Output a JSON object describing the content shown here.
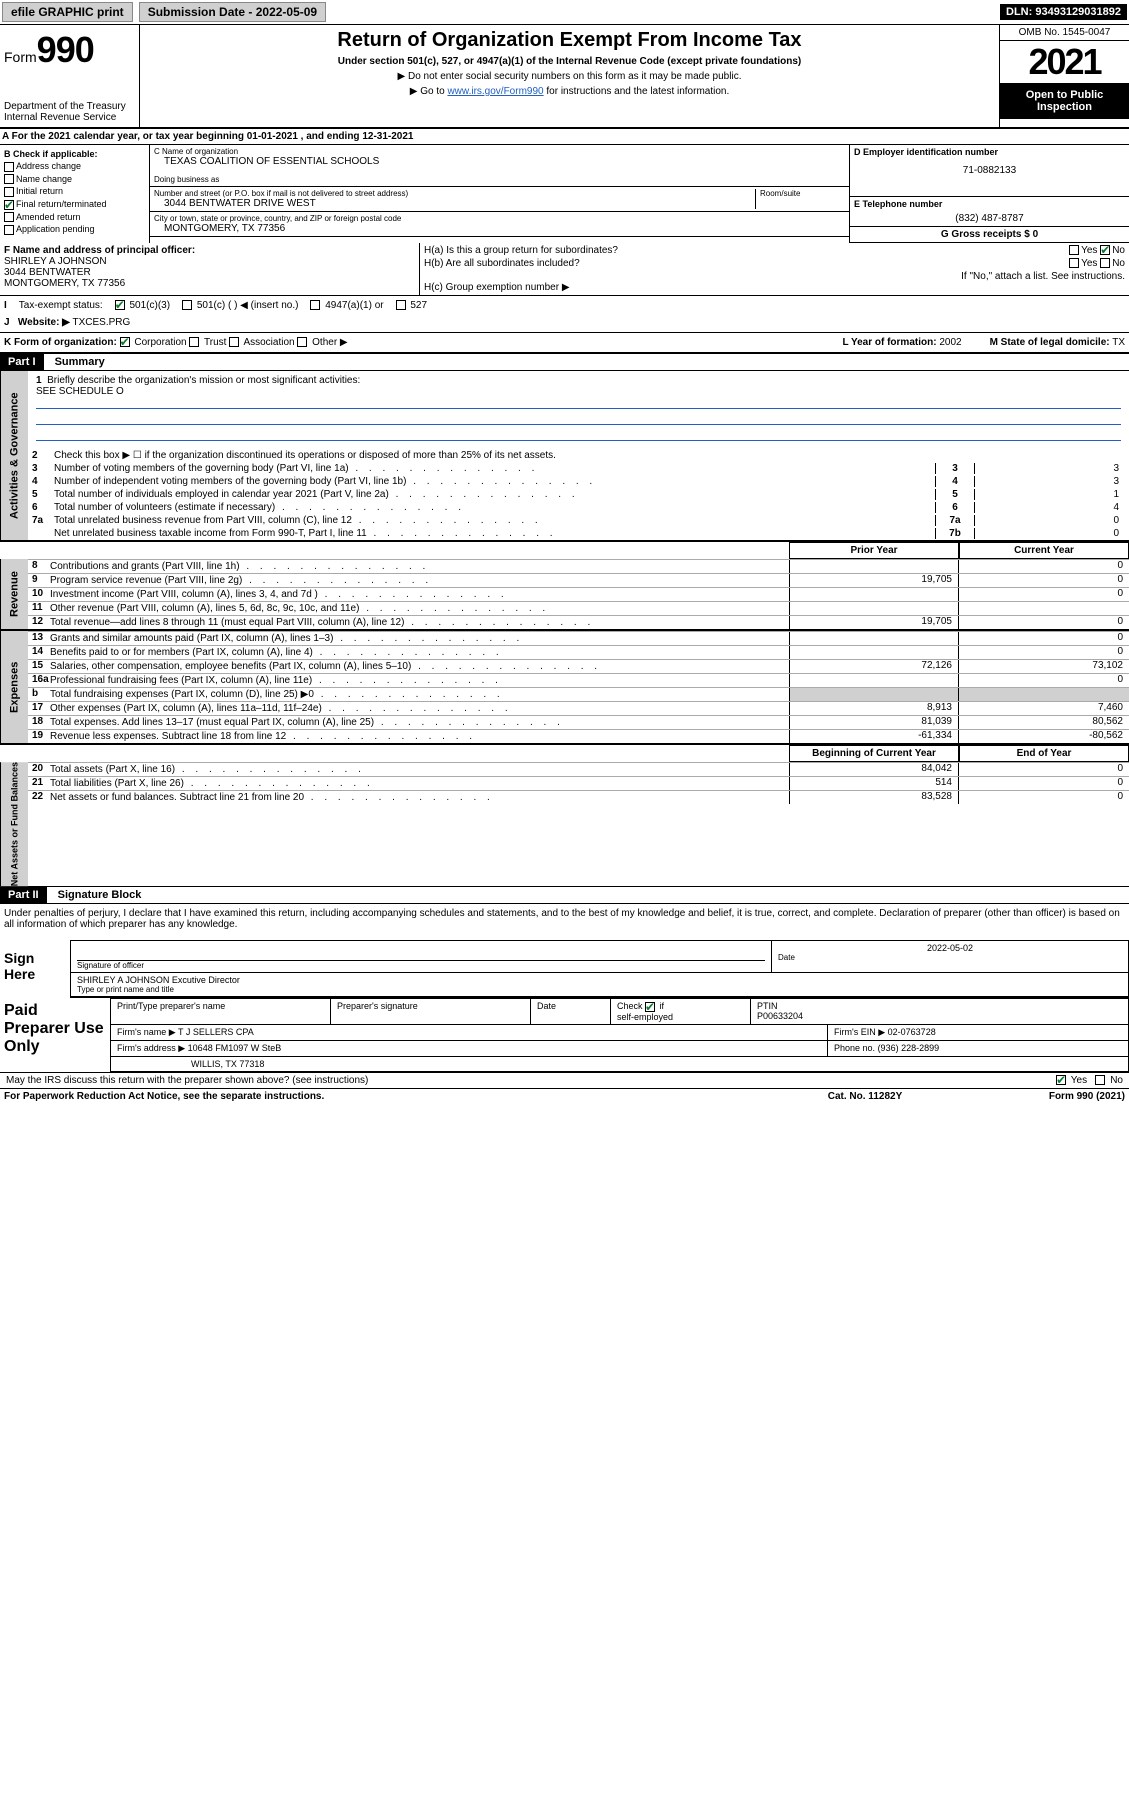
{
  "topbar": {
    "efile": "efile GRAPHIC print",
    "sub_date_label": "Submission Date - ",
    "sub_date": "2022-05-09",
    "dln_label": "DLN: ",
    "dln": "93493129031892"
  },
  "header": {
    "form_label": "Form",
    "form_number": "990",
    "dept": "Department of the Treasury",
    "irs": "Internal Revenue Service",
    "title": "Return of Organization Exempt From Income Tax",
    "sub1": "Under section 501(c), 527, or 4947(a)(1) of the Internal Revenue Code (except private foundations)",
    "sub2": "▶ Do not enter social security numbers on this form as it may be made public.",
    "sub3_pre": "▶ Go to ",
    "sub3_link": "www.irs.gov/Form990",
    "sub3_post": " for instructions and the latest information.",
    "omb": "OMB No. 1545-0047",
    "year": "2021",
    "open1": "Open to Public",
    "open2": "Inspection"
  },
  "rowA": {
    "text": "A For the 2021 calendar year, or tax year beginning 01-01-2021  , and ending 12-31-2021"
  },
  "secB": {
    "label": "B Check if applicable:",
    "items": [
      "Address change",
      "Name change",
      "Initial return",
      "Final return/terminated",
      "Amended return",
      "Application pending"
    ],
    "checked_final": true
  },
  "secC": {
    "name_lbl": "C Name of organization",
    "name": "TEXAS COALITION OF ESSENTIAL SCHOOLS",
    "dba_lbl": "Doing business as",
    "dba": "",
    "addr_lbl": "Number and street (or P.O. box if mail is not delivered to street address)",
    "room_lbl": "Room/suite",
    "addr": "3044 BENTWATER DRIVE WEST",
    "city_lbl": "City or town, state or province, country, and ZIP or foreign postal code",
    "city": "MONTGOMERY, TX  77356"
  },
  "secD": {
    "ein_lbl": "D Employer identification number",
    "ein": "71-0882133",
    "tel_lbl": "E Telephone number",
    "tel": "(832) 487-8787",
    "gross_lbl": "G Gross receipts $",
    "gross": "0"
  },
  "secF": {
    "lbl": "F Name and address of principal officer:",
    "name": "SHIRLEY A JOHNSON",
    "addr1": "3044 BENTWATER",
    "addr2": "MONTGOMERY, TX  77356"
  },
  "secH": {
    "ha": "H(a)  Is this a group return for subordinates?",
    "ha_no": true,
    "hb": "H(b)  Are all subordinates included?",
    "hb_note": "If \"No,\" attach a list. See instructions.",
    "hc": "H(c)  Group exemption number ▶"
  },
  "secI": {
    "lbl": "Tax-exempt status:",
    "c3": "501(c)(3)",
    "c_other": "501(c) (  ) ◀ (insert no.)",
    "a4947": "4947(a)(1) or",
    "s527": "527"
  },
  "secJ": {
    "lbl": "Website: ▶",
    "val": "TXCES.PRG"
  },
  "secK": {
    "lbl": "K Form of organization:",
    "corp": "Corporation",
    "trust": "Trust",
    "assoc": "Association",
    "other": "Other ▶",
    "l_lbl": "L Year of formation:",
    "l_val": "2002",
    "m_lbl": "M State of legal domicile:",
    "m_val": "TX"
  },
  "part1": {
    "hdr": "Part I",
    "title": "Summary"
  },
  "summary_top": {
    "line1_num": "1",
    "line1_txt": "Briefly describe the organization's mission or most significant activities:",
    "line1_val": "SEE SCHEDULE O",
    "line2_num": "2",
    "line2_txt": "Check this box ▶ ☐ if the organization discontinued its operations or disposed of more than 25% of its net assets.",
    "lines": [
      {
        "n": "3",
        "t": "Number of voting members of the governing body (Part VI, line 1a)",
        "box": "3",
        "v": "3"
      },
      {
        "n": "4",
        "t": "Number of independent voting members of the governing body (Part VI, line 1b)",
        "box": "4",
        "v": "3"
      },
      {
        "n": "5",
        "t": "Total number of individuals employed in calendar year 2021 (Part V, line 2a)",
        "box": "5",
        "v": "1"
      },
      {
        "n": "6",
        "t": "Total number of volunteers (estimate if necessary)",
        "box": "6",
        "v": "4"
      },
      {
        "n": "7a",
        "t": "Total unrelated business revenue from Part VIII, column (C), line 12",
        "box": "7a",
        "v": "0"
      },
      {
        "n": "",
        "t": "Net unrelated business taxable income from Form 990-T, Part I, line 11",
        "box": "7b",
        "v": "0"
      }
    ]
  },
  "two_col": {
    "prior": "Prior Year",
    "curr": "Current Year"
  },
  "revenue": {
    "label": "Revenue",
    "rows": [
      {
        "n": "8",
        "t": "Contributions and grants (Part VIII, line 1h)",
        "p": "",
        "c": "0"
      },
      {
        "n": "9",
        "t": "Program service revenue (Part VIII, line 2g)",
        "p": "19,705",
        "c": "0"
      },
      {
        "n": "10",
        "t": "Investment income (Part VIII, column (A), lines 3, 4, and 7d )",
        "p": "",
        "c": "0"
      },
      {
        "n": "11",
        "t": "Other revenue (Part VIII, column (A), lines 5, 6d, 8c, 9c, 10c, and 11e)",
        "p": "",
        "c": ""
      },
      {
        "n": "12",
        "t": "Total revenue—add lines 8 through 11 (must equal Part VIII, column (A), line 12)",
        "p": "19,705",
        "c": "0"
      }
    ]
  },
  "expenses": {
    "label": "Expenses",
    "rows": [
      {
        "n": "13",
        "t": "Grants and similar amounts paid (Part IX, column (A), lines 1–3)",
        "p": "",
        "c": "0"
      },
      {
        "n": "14",
        "t": "Benefits paid to or for members (Part IX, column (A), line 4)",
        "p": "",
        "c": "0"
      },
      {
        "n": "15",
        "t": "Salaries, other compensation, employee benefits (Part IX, column (A), lines 5–10)",
        "p": "72,126",
        "c": "73,102"
      },
      {
        "n": "16a",
        "t": "Professional fundraising fees (Part IX, column (A), line 11e)",
        "p": "",
        "c": "0"
      },
      {
        "n": "b",
        "t": "Total fundraising expenses (Part IX, column (D), line 25) ▶0",
        "p": "",
        "c": "",
        "shade": true
      },
      {
        "n": "17",
        "t": "Other expenses (Part IX, column (A), lines 11a–11d, 11f–24e)",
        "p": "8,913",
        "c": "7,460"
      },
      {
        "n": "18",
        "t": "Total expenses. Add lines 13–17 (must equal Part IX, column (A), line 25)",
        "p": "81,039",
        "c": "80,562"
      },
      {
        "n": "19",
        "t": "Revenue less expenses. Subtract line 18 from line 12",
        "p": "-61,334",
        "c": "-80,562"
      }
    ]
  },
  "netassets": {
    "label": "Net Assets or Fund Balances",
    "begin": "Beginning of Current Year",
    "end": "End of Year",
    "rows": [
      {
        "n": "20",
        "t": "Total assets (Part X, line 16)",
        "p": "84,042",
        "c": "0"
      },
      {
        "n": "21",
        "t": "Total liabilities (Part X, line 26)",
        "p": "514",
        "c": "0"
      },
      {
        "n": "22",
        "t": "Net assets or fund balances. Subtract line 21 from line 20",
        "p": "83,528",
        "c": "0"
      }
    ]
  },
  "part2": {
    "hdr": "Part II",
    "title": "Signature Block",
    "decl": "Under penalties of perjury, I declare that I have examined this return, including accompanying schedules and statements, and to the best of my knowledge and belief, it is true, correct, and complete. Declaration of preparer (other than officer) is based on all information of which preparer has any knowledge."
  },
  "sign": {
    "label": "Sign Here",
    "sig_lbl": "Signature of officer",
    "date_lbl": "Date",
    "date": "2022-05-02",
    "name": "SHIRLEY A JOHNSON  Excutive Director",
    "name_lbl": "Type or print name and title"
  },
  "paid": {
    "label": "Paid Preparer Use Only",
    "h_name": "Print/Type preparer's name",
    "h_sig": "Preparer's signature",
    "h_date": "Date",
    "h_check": "Check ☑ if self-employed",
    "h_ptin": "PTIN",
    "ptin": "P00633204",
    "firm_lbl": "Firm's name ▶",
    "firm": "T J SELLERS CPA",
    "ein_lbl": "Firm's EIN ▶",
    "ein": "02-0763728",
    "addr_lbl": "Firm's address ▶",
    "addr1": "10648 FM1097 W SteB",
    "addr2": "WILLIS, TX  77318",
    "phone_lbl": "Phone no.",
    "phone": "(936) 228-2899",
    "may_discuss": "May the IRS discuss this return with the preparer shown above? (see instructions)",
    "yes": "Yes",
    "no": "No"
  },
  "footer": {
    "pra": "For Paperwork Reduction Act Notice, see the separate instructions.",
    "cat": "Cat. No. 11282Y",
    "form": "Form 990 (2021)"
  }
}
